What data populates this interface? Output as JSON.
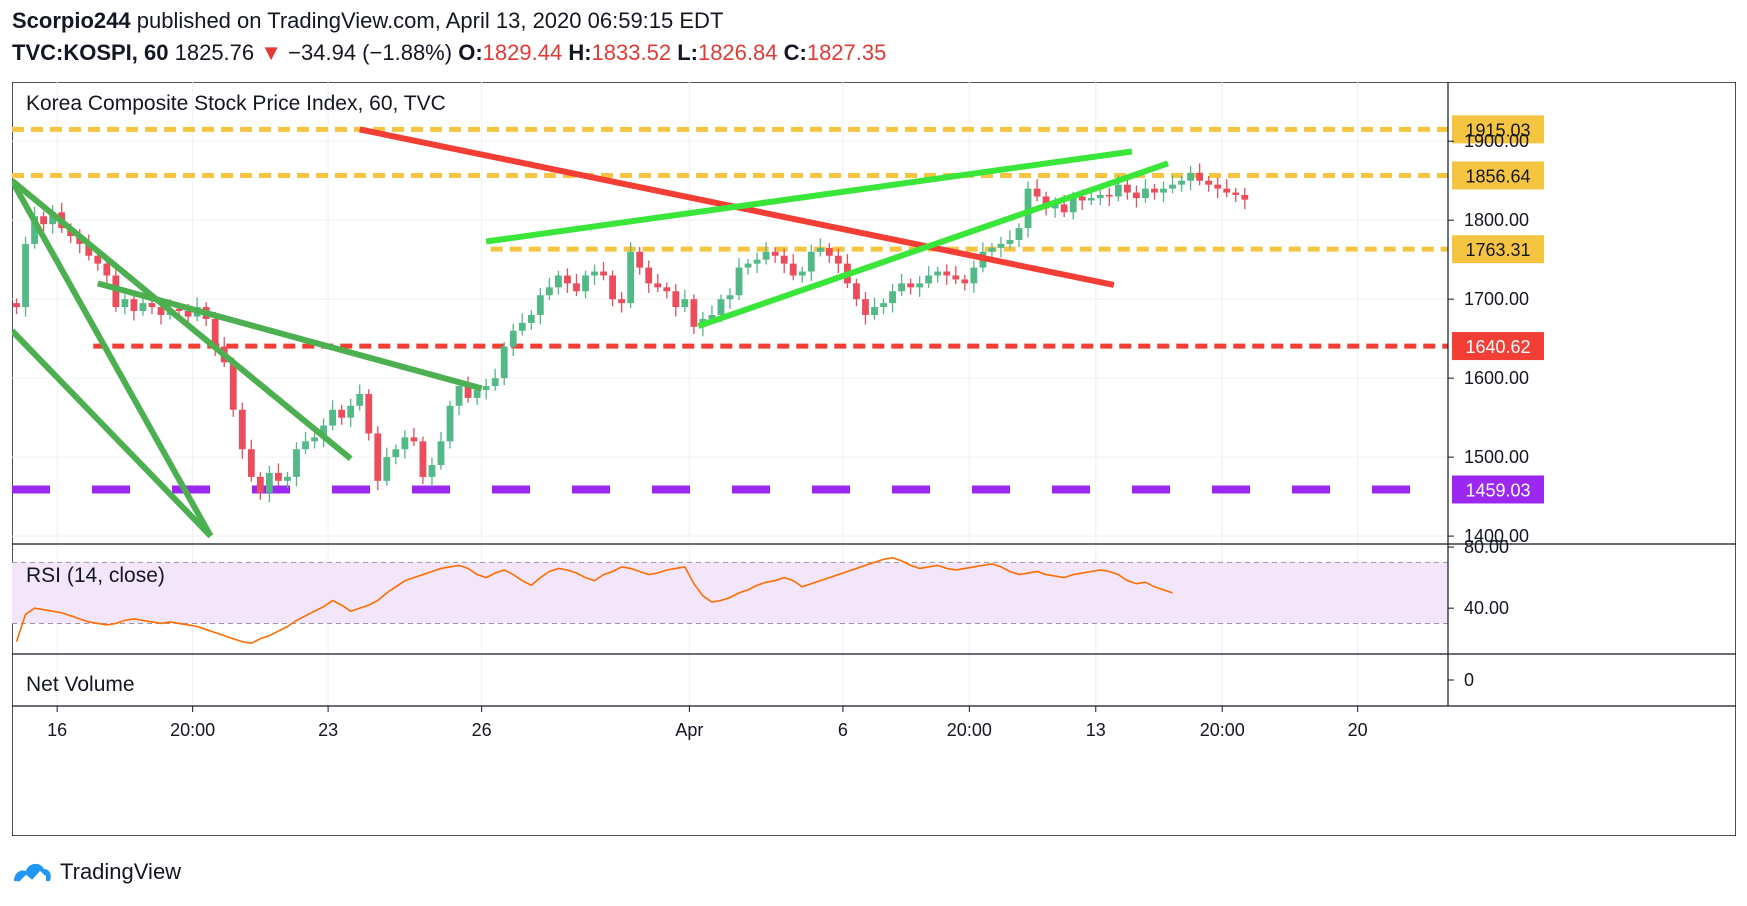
{
  "header": {
    "author": "Scorpio244",
    "published_text": "published on TradingView.com, April 13, 2020 06:59:15 EDT",
    "symbol": "TVC:KOSPI, 60",
    "last": "1825.76",
    "change_arrow": "▼",
    "change": "−34.94 (−1.88%)",
    "o_label": "O:",
    "o_value": "1829.44",
    "h_label": "H:",
    "h_value": "1833.52",
    "l_label": "L:",
    "l_value": "1826.84",
    "c_label": "C:",
    "c_value": "1827.35"
  },
  "footer": {
    "brand": "TradingView",
    "logo_icon": "tradingview-logo-icon"
  },
  "colors": {
    "up": "#53b987",
    "down": "#eb4d5c",
    "yellow": "#f5c542",
    "red": "#f23e35",
    "purple": "#9c27f0",
    "green_line": "#4caf50",
    "bright_green": "#39e639",
    "rsi": "#ff6d00",
    "rsi_band": "#f3e5fa"
  },
  "chart_data": [
    {
      "type": "candlestick",
      "title": "Korea Composite Stock Price Index, 60, TVC",
      "y_ticks": [
        "1400.00",
        "1500.00",
        "1600.00",
        "1700.00",
        "1800.00",
        "1900.00"
      ],
      "ylim": [
        1390,
        1975
      ],
      "x_ticks": [
        "16",
        "20:00",
        "23",
        "26",
        "Apr",
        "6",
        "20:00",
        "13",
        "20:00",
        "20"
      ],
      "x_domain": [
        0,
        159
      ],
      "x_tick_positions": [
        5,
        20,
        35,
        52,
        75,
        92,
        106,
        120,
        134,
        149
      ],
      "price_levels": [
        {
          "label": "1915.03",
          "value": 1915.03,
          "style": "dashed",
          "color": "yellow"
        },
        {
          "label": "1856.64",
          "value": 1856.64,
          "style": "dashed",
          "color": "yellow"
        },
        {
          "label": "1763.31",
          "value": 1763.31,
          "style": "dashed",
          "color": "yellow",
          "start_x": 53
        },
        {
          "label": "1640.62",
          "value": 1640.62,
          "style": "dashed",
          "color": "red",
          "start_x": 9
        },
        {
          "label": "1459.03",
          "value": 1459.03,
          "style": "dashed",
          "color": "purple"
        }
      ],
      "trendlines": [
        {
          "color": "green_line",
          "from": [
            0,
            1850
          ],
          "to": [
            22,
            1400
          ]
        },
        {
          "color": "green_line",
          "from": [
            0,
            1660
          ],
          "to": [
            22,
            1400
          ]
        },
        {
          "color": "green_line",
          "from": [
            0,
            1850
          ],
          "to": [
            37.5,
            1498
          ]
        },
        {
          "color": "green_line",
          "from": [
            9.5,
            1720
          ],
          "to": [
            52,
            1587
          ]
        },
        {
          "color": "red",
          "from": [
            38.5,
            1915
          ],
          "to": [
            122,
            1718
          ]
        },
        {
          "color": "bright_green",
          "from": [
            52.5,
            1773
          ],
          "to": [
            124,
            1887
          ]
        },
        {
          "color": "bright_green",
          "from": [
            76,
            1666
          ],
          "to": [
            128,
            1872
          ]
        }
      ],
      "closes": [
        1690,
        1770,
        1805,
        1795,
        1810,
        1790,
        1780,
        1770,
        1755,
        1745,
        1730,
        1690,
        1700,
        1685,
        1695,
        1690,
        1680,
        1688,
        1685,
        1678,
        1690,
        1675,
        1640,
        1620,
        1560,
        1510,
        1475,
        1455,
        1480,
        1470,
        1475,
        1510,
        1520,
        1525,
        1540,
        1560,
        1550,
        1565,
        1580,
        1530,
        1470,
        1500,
        1510,
        1525,
        1520,
        1475,
        1490,
        1520,
        1565,
        1590,
        1575,
        1585,
        1590,
        1600,
        1640,
        1660,
        1670,
        1680,
        1705,
        1715,
        1730,
        1720,
        1710,
        1730,
        1735,
        1730,
        1700,
        1695,
        1760,
        1740,
        1720,
        1715,
        1710,
        1690,
        1700,
        1665,
        1675,
        1680,
        1700,
        1705,
        1740,
        1745,
        1750,
        1760,
        1755,
        1745,
        1730,
        1735,
        1760,
        1765,
        1755,
        1745,
        1720,
        1700,
        1680,
        1690,
        1695,
        1710,
        1720,
        1715,
        1720,
        1730,
        1735,
        1730,
        1725,
        1720,
        1740,
        1760,
        1765,
        1770,
        1775,
        1790,
        1840,
        1830,
        1815,
        1820,
        1810,
        1830,
        1825,
        1828,
        1832,
        1830,
        1845,
        1835,
        1828,
        1840,
        1835,
        1840,
        1845,
        1850,
        1860,
        1850,
        1845,
        1840,
        1835,
        1832,
        1826
      ]
    },
    {
      "type": "line",
      "title": "RSI (14, close)",
      "y_ticks": [
        "40.00",
        "80.00"
      ],
      "ylim": [
        10,
        82
      ],
      "band": [
        30,
        70
      ],
      "x_domain": [
        0,
        159
      ],
      "values": [
        18,
        36,
        40,
        39,
        38,
        37,
        35,
        33,
        31,
        30,
        29,
        30,
        32,
        33,
        32,
        31,
        30,
        31,
        30,
        29,
        28,
        26,
        24,
        22,
        20,
        18,
        17,
        20,
        22,
        25,
        28,
        32,
        35,
        38,
        41,
        45,
        42,
        38,
        40,
        42,
        45,
        50,
        54,
        58,
        60,
        62,
        64,
        66,
        67,
        68,
        66,
        62,
        60,
        63,
        65,
        62,
        58,
        55,
        60,
        64,
        66,
        65,
        63,
        60,
        58,
        62,
        64,
        67,
        66,
        64,
        62,
        63,
        65,
        66,
        67,
        56,
        48,
        44,
        45,
        47,
        50,
        52,
        55,
        57,
        58,
        60,
        58,
        54,
        56,
        58,
        60,
        62,
        64,
        66,
        68,
        70,
        72,
        73,
        71,
        68,
        66,
        67,
        68,
        66,
        65,
        66,
        67,
        68,
        69,
        67,
        64,
        62,
        63,
        64,
        62,
        61,
        60,
        62,
        63,
        64,
        65,
        64,
        62,
        58,
        56,
        57,
        54,
        52,
        50
      ]
    },
    {
      "type": "bar",
      "title": "Net Volume",
      "y_ticks": [
        "0"
      ],
      "values": []
    }
  ]
}
